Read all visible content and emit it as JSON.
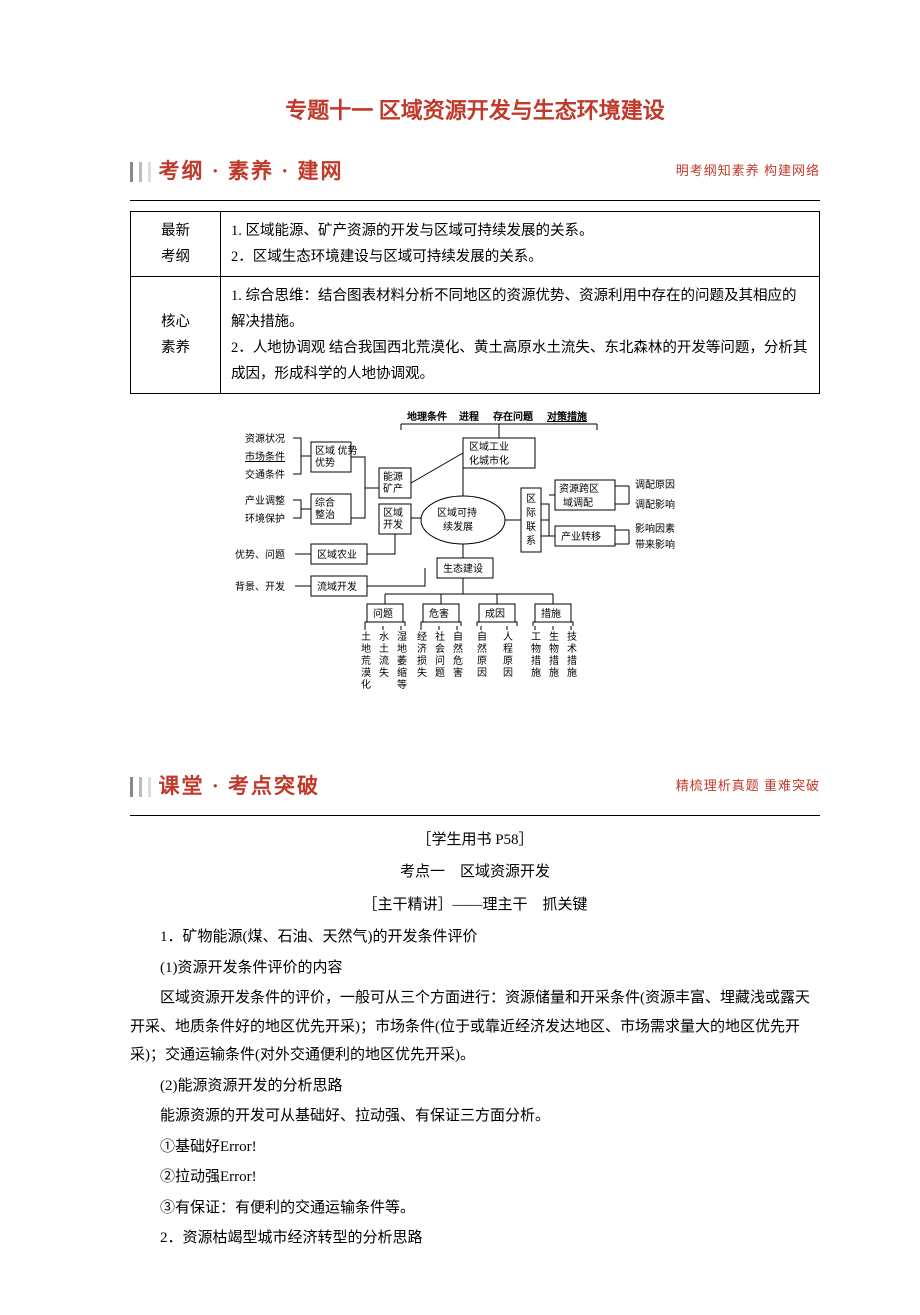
{
  "title": {
    "text": "专题十一  区域资源开发与生态环境建设",
    "color": "#c0392b"
  },
  "section1": {
    "heading": "考纲 · 素养 · 建网",
    "sub": "明考纲知素养  构建网络",
    "heading_color": "#c0392b",
    "sub_color": "#c0392b",
    "bar_colors": [
      "#888888",
      "#bbbbbb",
      "#dddddd"
    ]
  },
  "table": {
    "rows": [
      {
        "label": "最新\n考纲",
        "content": "1. 区域能源、矿产资源的开发与区域可持续发展的关系。\n2．区域生态环境建设与区域可持续发展的关系。"
      },
      {
        "label": "核心\n素养",
        "content": "1. 综合思维：结合图表材料分析不同地区的资源优势、资源利用中存在的问题及其相应的解决措施。\n2．人地协调观  结合我国西北荒漠化、黄土高原水土流失、东北森林的开发等问题，分析其成因，形成科学的人地协调观。"
      }
    ]
  },
  "diagram": {
    "top_header": [
      "地理条件",
      "进程",
      "存在问题",
      "对策措施"
    ],
    "left_col1": [
      "资源状况",
      "市场条件",
      "交通条件"
    ],
    "left_col1_target": "区域\n优势",
    "left_col2": [
      "产业调整",
      "环境保护"
    ],
    "left_col2_target": "综合\n整治",
    "left_row3": "优势、问题",
    "left_row3_target": "区域农业",
    "left_row4": "背景、开发",
    "left_row4_target": "流域开发",
    "mid_col": [
      "能源\n矿产",
      "区域\n开发"
    ],
    "center": "区域可持\n续发展",
    "top_right": "区域工业\n化城市化",
    "right_mid": "区\n际\n联\n系",
    "right_items": [
      {
        "box": "资源跨区\n域调配",
        "labels": [
          "调配原因",
          "调配影响"
        ]
      },
      {
        "box": "产业转移",
        "labels": [
          "影响因素",
          "带来影响"
        ]
      }
    ],
    "eco": "生态建设",
    "eco_row": [
      "问题",
      "危害",
      "成因",
      "措施"
    ],
    "eco_leaves": [
      "土地荒漠化",
      "水土流失",
      "湿地萎缩等",
      "经济损失",
      "社会问题",
      "自然危害",
      "自然原因",
      "人程原因",
      "工物措施",
      "生物措施",
      "技术措施"
    ]
  },
  "section2": {
    "heading": "课堂 · 考点突破",
    "sub": "精梳理析真题  重难突破",
    "heading_color": "#c0392b",
    "sub_color": "#c0392b",
    "bar_colors": [
      "#888888",
      "#bbbbbb",
      "#dddddd"
    ]
  },
  "body": {
    "ref": "［学生用书 P58］",
    "kaodian": "考点一　区域资源开发",
    "zhugan": "［主干精讲］——理主干　抓关键",
    "p1": "1．矿物能源(煤、石油、天然气)的开发条件评价",
    "p2": "(1)资源开发条件评价的内容",
    "p3": "区域资源开发条件的评价，一般可从三个方面进行：资源储量和开采条件(资源丰富、埋藏浅或露天开采、地质条件好的地区优先开采)；市场条件(位于或靠近经济发达地区、市场需求量大的地区优先开采)；交通运输条件(对外交通便利的地区优先开采)。",
    "p4": "(2)能源资源开发的分析思路",
    "p5": "能源资源的开发可从基础好、拉动强、有保证三方面分析。",
    "p6": "①基础好Error!",
    "p7": "②拉动强Error!",
    "p8": "③有保证：有便利的交通运输条件等。",
    "p9": "2．资源枯竭型城市经济转型的分析思路"
  }
}
